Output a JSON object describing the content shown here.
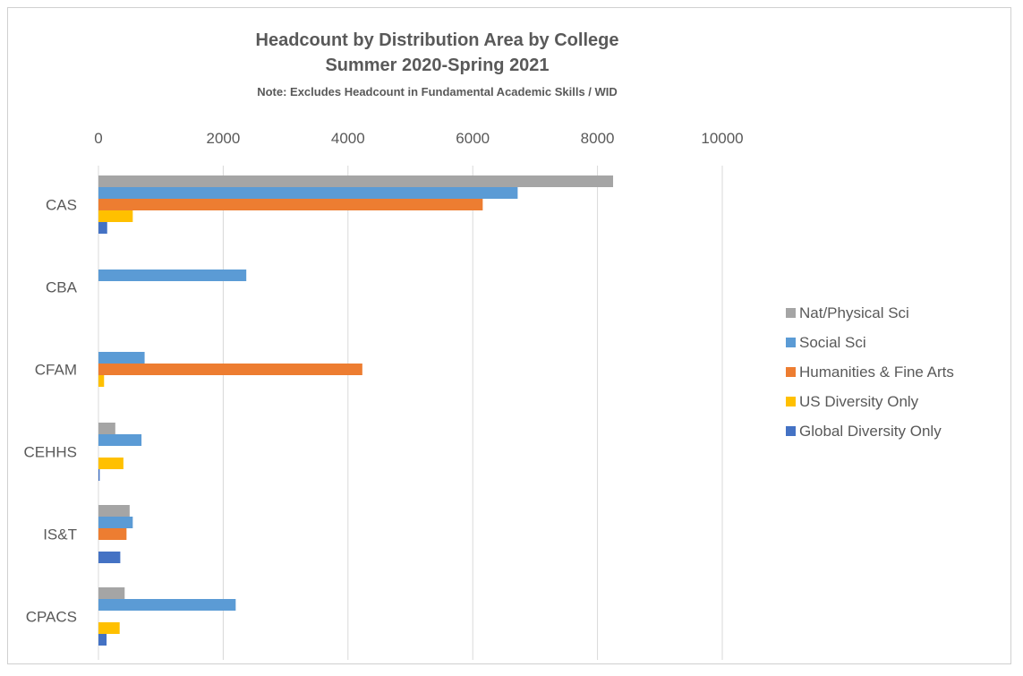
{
  "chart_data": {
    "type": "bar",
    "orientation": "horizontal",
    "title": "Headcount by Distribution Area by College",
    "subtitle": "Summer 2020-Spring 2021",
    "note": "Note: Excludes Headcount in Fundamental Academic Skills / WID",
    "categories": [
      "CAS",
      "CBA",
      "CFAM",
      "CEHHS",
      "IS&T",
      "CPACS"
    ],
    "x_ticks": [
      "0",
      "2000",
      "4000",
      "6000",
      "8000",
      "10000"
    ],
    "xlim": [
      0,
      10000
    ],
    "grid": true,
    "legend_position": "right",
    "series": [
      {
        "name": "Nat/Physical Sci",
        "color": "#a5a5a5",
        "values": [
          8250,
          0,
          0,
          270,
          500,
          420
        ]
      },
      {
        "name": "Social Sci",
        "color": "#5b9bd5",
        "values": [
          6720,
          2370,
          740,
          690,
          550,
          2200
        ]
      },
      {
        "name": "Humanities & Fine Arts",
        "color": "#ed7d31",
        "values": [
          6160,
          0,
          4230,
          0,
          450,
          0
        ]
      },
      {
        "name": "US Diversity Only",
        "color": "#ffc000",
        "values": [
          550,
          0,
          90,
          400,
          0,
          340
        ]
      },
      {
        "name": "Global Diversity Only",
        "color": "#4472c4",
        "values": [
          140,
          0,
          0,
          20,
          350,
          130
        ]
      }
    ]
  }
}
